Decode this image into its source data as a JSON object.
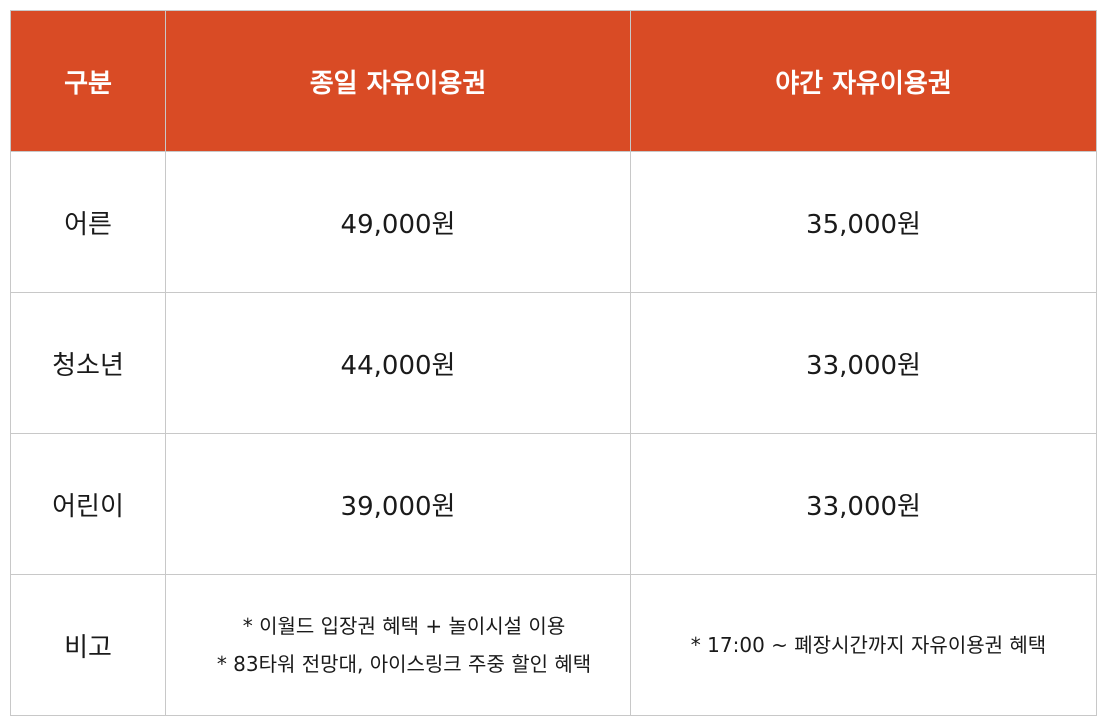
{
  "header": {
    "category": "구분",
    "full_day": "종일 자유이용권",
    "night": "야간 자유이용권"
  },
  "rows": [
    {
      "label": "어른",
      "full_day": "49,000원",
      "night": "35,000원"
    },
    {
      "label": "청소년",
      "full_day": "44,000원",
      "night": "33,000원"
    },
    {
      "label": "어린이",
      "full_day": "39,000원",
      "night": "33,000원"
    }
  ],
  "notes": {
    "label": "비고",
    "full_day": [
      "* 이월드 입장권 혜택 + 놀이시설 이용",
      "* 83타워 전망대, 아이스링크 주중 할인 혜택"
    ],
    "night": [
      "* 17:00 ~ 폐장시간까지 자유이용권 혜택"
    ]
  },
  "colors": {
    "header_bg": "#d94b25",
    "header_text": "#ffffff",
    "border": "#c8c8c8"
  }
}
